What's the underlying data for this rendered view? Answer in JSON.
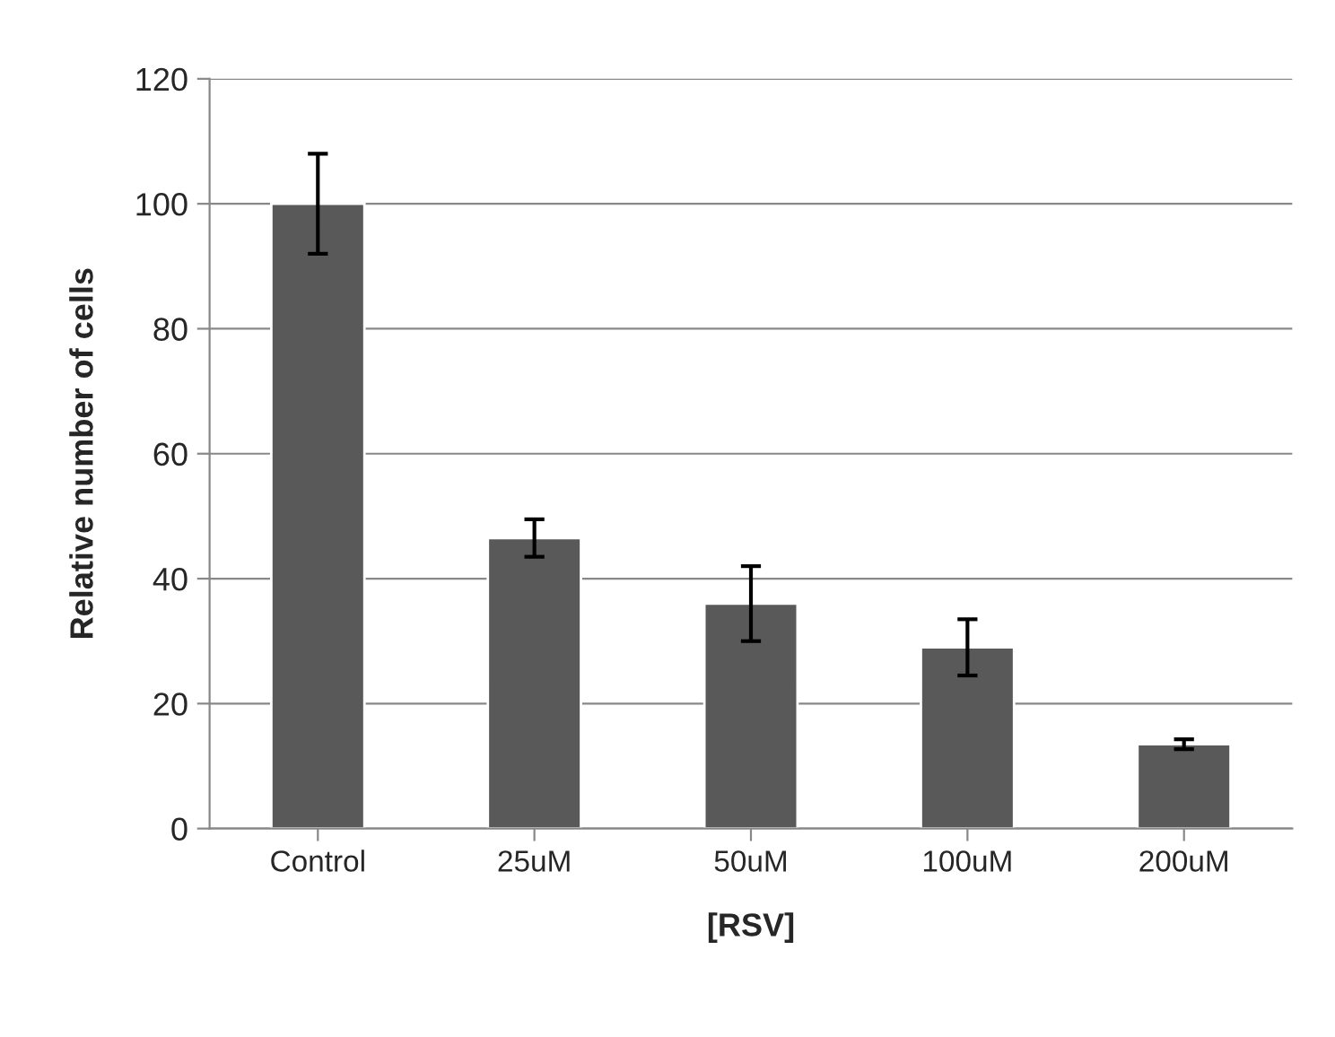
{
  "chart_data": {
    "type": "bar",
    "xlabel": "[RSV]",
    "ylabel": "Relative number of cells",
    "categories": [
      "Control",
      "25uM",
      "50uM",
      "100uM",
      "200uM"
    ],
    "values": [
      100,
      46.5,
      36,
      29,
      13.5
    ],
    "errors": [
      8,
      3,
      6,
      4.5,
      0.8
    ],
    "color": "#595959",
    "ylim": [
      0,
      120
    ],
    "yticks": [
      0,
      20,
      40,
      60,
      80,
      100,
      120
    ],
    "grid": "y",
    "legend": false
  }
}
